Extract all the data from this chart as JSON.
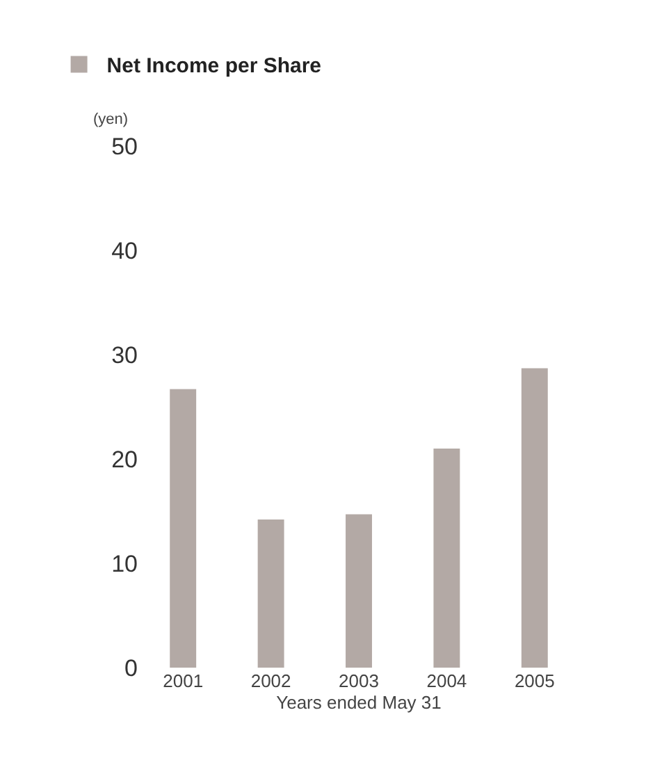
{
  "chart_data": {
    "type": "bar",
    "categories": [
      "2001",
      "2002",
      "2003",
      "2004",
      "2005"
    ],
    "series": [
      {
        "name": "Net Income per Share",
        "color": "#b3a9a5",
        "values": [
          26.7,
          14.2,
          14.7,
          21.0,
          28.7
        ]
      }
    ],
    "ylabel": "(yen)",
    "xlabel": "Years ended May 31",
    "ylim": [
      0,
      50
    ],
    "yticks": [
      0,
      10,
      20,
      30,
      40,
      50
    ],
    "grid": false,
    "legend": "top left"
  }
}
